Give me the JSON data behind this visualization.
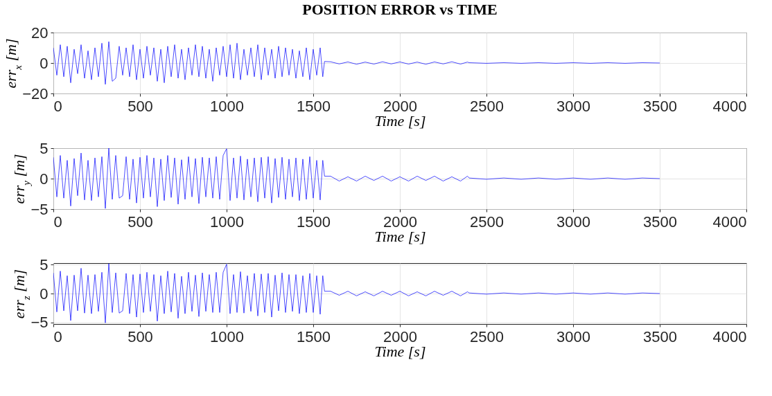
{
  "chart_data": [
    {
      "type": "line",
      "title": "POSITION ERROR vs TIME",
      "xlabel": "Time [s]",
      "ylabel": "err$_{x}$ [m]",
      "xlim": [
        0,
        4000
      ],
      "xticks": [
        0,
        500,
        1000,
        1500,
        2000,
        2500,
        3000,
        3500,
        4000
      ],
      "ylim": [
        -20,
        20
      ],
      "yticks": [
        -20,
        0,
        20
      ],
      "grid": true,
      "line_style": "solid",
      "x": [
        0,
        20,
        40,
        60,
        80,
        100,
        120,
        140,
        160,
        180,
        200,
        220,
        240,
        260,
        280,
        300,
        320,
        340,
        360,
        380,
        400,
        420,
        440,
        460,
        480,
        500,
        520,
        540,
        560,
        580,
        600,
        620,
        640,
        660,
        680,
        700,
        720,
        740,
        760,
        780,
        800,
        820,
        840,
        860,
        880,
        900,
        920,
        940,
        960,
        980,
        1000,
        1020,
        1040,
        1060,
        1080,
        1100,
        1120,
        1140,
        1160,
        1180,
        1200,
        1220,
        1240,
        1260,
        1280,
        1300,
        1320,
        1340,
        1360,
        1380,
        1400,
        1420,
        1440,
        1460,
        1480,
        1500,
        1520,
        1540,
        1555,
        1565,
        1600,
        1650,
        1700,
        1750,
        1800,
        1850,
        1900,
        1950,
        2000,
        2050,
        2100,
        2150,
        2200,
        2250,
        2300,
        2350,
        2390,
        2400,
        2500,
        2600,
        2700,
        2800,
        2900,
        3000,
        3100,
        3200,
        3300,
        3400,
        3500
      ],
      "series": [
        {
          "color": "#0000ff",
          "values": [
            10,
            -8,
            12,
            -9,
            11,
            -13,
            9,
            -7,
            12,
            -10,
            8,
            -11,
            10,
            -9,
            13,
            -14,
            14,
            -12,
            -10,
            11,
            -8,
            10,
            -9,
            12,
            -11,
            9,
            -10,
            11,
            -8,
            10,
            -12,
            9,
            -13,
            11,
            -9,
            12,
            -10,
            9,
            -11,
            10,
            -8,
            12,
            -9,
            11,
            -10,
            9,
            -12,
            10,
            -8,
            11,
            -9,
            12,
            -10,
            13,
            -11,
            9,
            -8,
            10,
            -9,
            12,
            -11,
            10,
            -8,
            9,
            -10,
            11,
            -9,
            10,
            -8,
            9,
            -10,
            8,
            -9,
            10,
            -11,
            9,
            -8,
            10,
            -9,
            1,
            0.8,
            -0.6,
            0.7,
            -0.8,
            0.6,
            -0.7,
            0.8,
            -0.6,
            0.7,
            -0.7,
            0.6,
            -0.8,
            0.7,
            -0.6,
            0.8,
            -0.7,
            0.6,
            0.2,
            -0.2,
            0.2,
            -0.2,
            0.2,
            -0.2,
            0.2,
            -0.2,
            0.2,
            -0.2,
            0.2,
            0
          ]
        }
      ]
    },
    {
      "type": "line",
      "xlabel": "Time [s]",
      "ylabel": "err$_{y}$ [m]",
      "xlim": [
        0,
        4000
      ],
      "xticks": [
        0,
        500,
        1000,
        1500,
        2000,
        2500,
        3000,
        3500,
        4000
      ],
      "ylim": [
        -5,
        5
      ],
      "yticks": [
        -5,
        0,
        5
      ],
      "grid": true,
      "line_style": "solid",
      "x": [
        0,
        20,
        40,
        60,
        80,
        100,
        120,
        140,
        160,
        180,
        200,
        220,
        240,
        260,
        280,
        300,
        320,
        340,
        360,
        380,
        400,
        420,
        440,
        460,
        480,
        500,
        520,
        540,
        560,
        580,
        600,
        620,
        640,
        660,
        680,
        700,
        720,
        740,
        760,
        780,
        800,
        820,
        840,
        860,
        880,
        900,
        920,
        940,
        960,
        980,
        1000,
        1020,
        1040,
        1060,
        1080,
        1100,
        1120,
        1140,
        1160,
        1180,
        1200,
        1220,
        1240,
        1260,
        1280,
        1300,
        1320,
        1340,
        1360,
        1380,
        1400,
        1420,
        1440,
        1460,
        1480,
        1500,
        1520,
        1540,
        1555,
        1565,
        1600,
        1650,
        1700,
        1750,
        1800,
        1850,
        1900,
        1950,
        2000,
        2050,
        2100,
        2150,
        2200,
        2250,
        2300,
        2350,
        2390,
        2400,
        2500,
        2600,
        2700,
        2800,
        2900,
        3000,
        3100,
        3200,
        3300,
        3400,
        3500
      ],
      "series": [
        {
          "color": "#0000ff",
          "values": [
            3.5,
            -3,
            3.8,
            -3.2,
            3,
            -4.5,
            3.3,
            -2.8,
            4.2,
            -3.5,
            3,
            -3.6,
            3.4,
            -3,
            3.6,
            -4.9,
            5,
            -3.4,
            3.8,
            -3.2,
            -2.8,
            3.6,
            -3.4,
            3.2,
            -4,
            3.5,
            -3.2,
            3.8,
            -3,
            3.4,
            -4.6,
            3.2,
            -3.6,
            3.8,
            -3.1,
            3.4,
            -4.2,
            3.1,
            -3.4,
            3.6,
            -3,
            3.3,
            -4.1,
            3.5,
            -3,
            3.4,
            -3.2,
            3.6,
            -3.4,
            3.8,
            4.9,
            -3.6,
            3.4,
            -3.2,
            3.7,
            -3.5,
            3.2,
            -3,
            3.4,
            -3.8,
            3.5,
            -3.2,
            3.6,
            -4,
            3.3,
            -3.1,
            3.5,
            -3.4,
            3.2,
            -3,
            3.4,
            -3.6,
            3.2,
            -3.4,
            3.6,
            -3.2,
            3,
            -3.5,
            3,
            0.4,
            0.4,
            -0.4,
            0.3,
            -0.4,
            0.4,
            -0.3,
            0.4,
            -0.4,
            0.3,
            -0.4,
            0.4,
            -0.3,
            0.4,
            -0.4,
            0.3,
            -0.4,
            0.4,
            0.1,
            -0.1,
            0.1,
            -0.1,
            0.1,
            -0.1,
            0.1,
            -0.1,
            0.1,
            -0.1,
            0.1,
            0
          ]
        }
      ]
    },
    {
      "type": "line",
      "xlabel": "Time [s]",
      "ylabel": "err$_{z}$ [m]",
      "xlim": [
        0,
        4000
      ],
      "xticks": [
        0,
        500,
        1000,
        1500,
        2000,
        2500,
        3000,
        3500,
        4000
      ],
      "ylim": [
        -5.3,
        5.3
      ],
      "yticks": [
        -5,
        0,
        5
      ],
      "grid": true,
      "line_style": "solid",
      "x": [
        0,
        20,
        40,
        60,
        80,
        100,
        120,
        140,
        160,
        180,
        200,
        220,
        240,
        260,
        280,
        300,
        320,
        340,
        360,
        380,
        400,
        420,
        440,
        460,
        480,
        500,
        520,
        540,
        560,
        580,
        600,
        620,
        640,
        660,
        680,
        700,
        720,
        740,
        760,
        780,
        800,
        820,
        840,
        860,
        880,
        900,
        920,
        940,
        960,
        980,
        1000,
        1020,
        1040,
        1060,
        1080,
        1100,
        1120,
        1140,
        1160,
        1180,
        1200,
        1220,
        1240,
        1260,
        1280,
        1300,
        1320,
        1340,
        1360,
        1380,
        1400,
        1420,
        1440,
        1460,
        1480,
        1500,
        1520,
        1540,
        1555,
        1565,
        1600,
        1650,
        1700,
        1750,
        1800,
        1850,
        1900,
        1950,
        2000,
        2050,
        2100,
        2150,
        2200,
        2250,
        2300,
        2350,
        2390,
        2400,
        2500,
        2600,
        2700,
        2800,
        2900,
        3000,
        3100,
        3200,
        3300,
        3400,
        3500
      ],
      "series": [
        {
          "color": "#0000ff",
          "values": [
            3.6,
            -3.2,
            3.9,
            -3,
            3.1,
            -4.7,
            3.2,
            -3,
            4.4,
            -3.4,
            3.2,
            -3.5,
            3.3,
            -3.1,
            3.7,
            -5.1,
            5.2,
            -3.3,
            3.6,
            -3.4,
            -3,
            3.5,
            -3.5,
            3.3,
            -4.1,
            3.4,
            -3.3,
            3.7,
            -3.1,
            3.3,
            -4.8,
            3.1,
            -3.5,
            3.9,
            -3.2,
            3.5,
            -4.3,
            3,
            -3.5,
            3.7,
            -3.1,
            3.2,
            -4,
            3.6,
            -3.1,
            3.3,
            -3.3,
            3.7,
            -3.3,
            3.7,
            5.1,
            -3.5,
            3.3,
            -3.3,
            3.8,
            -3.4,
            3.1,
            -3.1,
            3.5,
            -3.9,
            3.4,
            -3.3,
            3.5,
            -4.1,
            3.2,
            -3,
            3.6,
            -3.3,
            3.3,
            -3.1,
            3.3,
            -3.5,
            3.1,
            -3.3,
            3.5,
            -3.3,
            3.1,
            -3.6,
            3.1,
            0.4,
            0.4,
            -0.3,
            0.4,
            -0.4,
            0.3,
            -0.4,
            0.4,
            -0.3,
            0.4,
            -0.4,
            0.3,
            -0.4,
            0.4,
            -0.3,
            0.4,
            -0.4,
            0.3,
            0.1,
            -0.1,
            0.1,
            -0.1,
            0.1,
            -0.1,
            0.1,
            -0.1,
            0.1,
            -0.1,
            0.1,
            0
          ]
        }
      ]
    }
  ]
}
